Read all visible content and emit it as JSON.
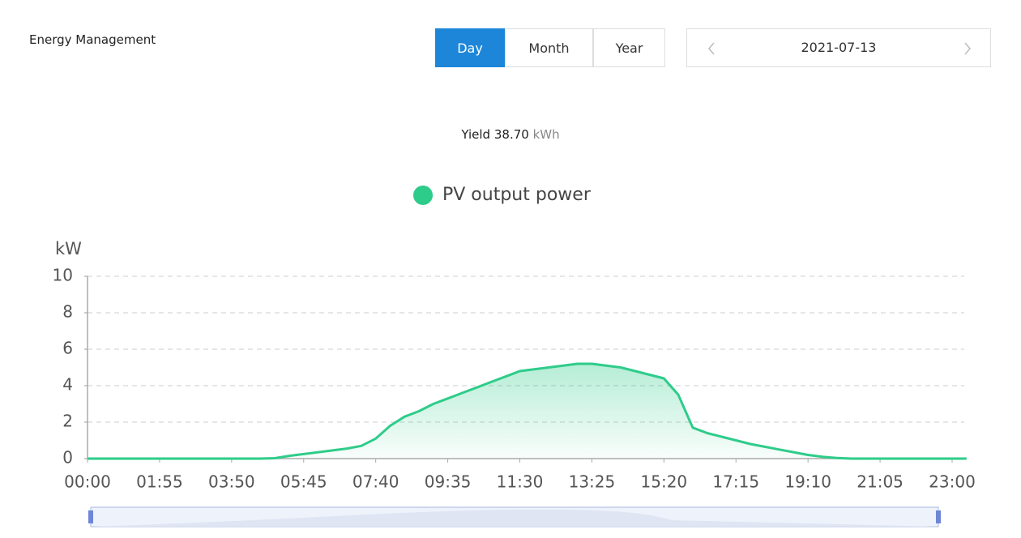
{
  "header": {
    "title": "Energy Management"
  },
  "tabs": [
    "Day",
    "Month",
    "Year"
  ],
  "active_tab": 0,
  "date": "2021-07-13",
  "summary": {
    "label": "Yield",
    "value": "38.70",
    "unit": "kWh"
  },
  "chart_data": {
    "type": "line",
    "y_label": "kW",
    "categories": [
      "00:00",
      null,
      null,
      null,
      null,
      "01:55",
      null,
      null,
      null,
      null,
      "03:50",
      null,
      null,
      null,
      null,
      "05:45",
      null,
      null,
      null,
      null,
      "07:40",
      null,
      null,
      null,
      null,
      "09:35",
      null,
      null,
      null,
      null,
      "11:30",
      null,
      null,
      null,
      null,
      "13:25",
      null,
      null,
      null,
      null,
      "15:20",
      null,
      null,
      null,
      null,
      "17:15",
      null,
      null,
      null,
      null,
      "19:10",
      null,
      null,
      null,
      null,
      "21:05",
      null,
      null,
      null,
      null,
      "23:00",
      null
    ],
    "series": [
      {
        "name": "PV output power",
        "color": "#2ecc8a",
        "values": [
          0,
          0,
          0,
          0,
          0,
          0,
          0,
          0,
          0,
          0,
          0,
          0,
          0,
          0.02,
          0.15,
          0.25,
          0.35,
          0.45,
          0.55,
          0.7,
          1.1,
          1.8,
          2.3,
          2.6,
          3.0,
          3.3,
          3.6,
          3.9,
          4.2,
          4.5,
          4.8,
          4.9,
          5.0,
          5.1,
          5.2,
          5.2,
          5.1,
          5.0,
          4.8,
          4.6,
          4.4,
          3.5,
          1.7,
          1.4,
          1.2,
          1.0,
          0.8,
          0.65,
          0.5,
          0.35,
          0.2,
          0.1,
          0.03,
          0,
          0,
          0,
          0,
          0,
          0,
          0,
          0,
          0
        ]
      }
    ],
    "ylim": [
      0,
      10
    ],
    "yticks": [
      0,
      2,
      4,
      6,
      8,
      10
    ],
    "grid": true
  }
}
